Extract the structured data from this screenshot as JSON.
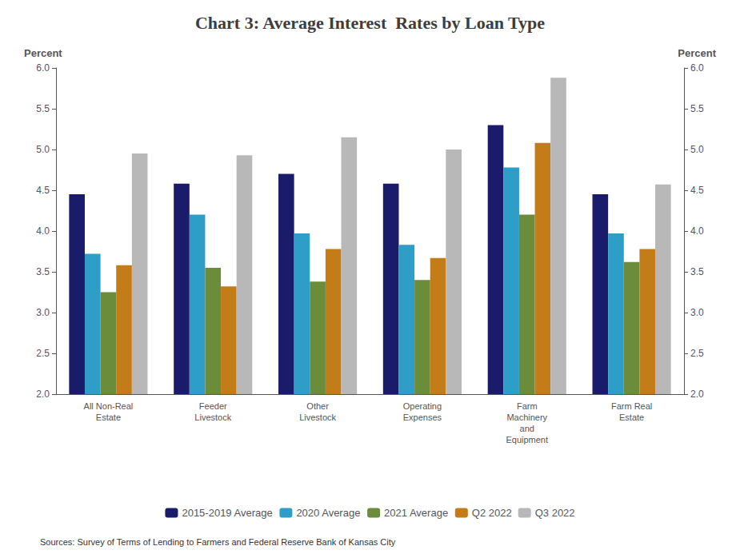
{
  "chart_data": {
    "type": "bar",
    "title": "Chart 3: Average Interest  Rates by Loan Type",
    "categories": [
      "All Non-Real\nEstate",
      "Feeder\nLivestock",
      "Other\nLivestock",
      "Operating\nExpenses",
      "Farm\nMachinery\nand\nEquipment",
      "Farm Real\nEstate"
    ],
    "series": [
      {
        "name": "2015-2019 Average",
        "color": "#1b1b6b",
        "values": [
          4.45,
          4.58,
          4.7,
          4.58,
          5.3,
          4.45
        ]
      },
      {
        "name": "2020 Average",
        "color": "#2e9ec9",
        "values": [
          3.72,
          4.2,
          3.97,
          3.83,
          4.78,
          3.97
        ]
      },
      {
        "name": "2021 Average",
        "color": "#6b8c3a",
        "values": [
          3.25,
          3.55,
          3.38,
          3.4,
          4.2,
          3.62
        ]
      },
      {
        "name": "Q2 2022",
        "color": "#c47c18",
        "values": [
          3.58,
          3.32,
          3.78,
          3.67,
          5.08,
          3.78
        ]
      },
      {
        "name": "Q3 2022",
        "color": "#b8b8b8",
        "values": [
          4.95,
          4.93,
          5.15,
          5.0,
          5.88,
          4.57
        ]
      }
    ],
    "ylabel": "Percent",
    "ylim": [
      2.0,
      6.0
    ],
    "yticks": [
      {
        "value": 2.0,
        "label": "2.0"
      },
      2.5,
      {
        "value": 3.0,
        "label": "3.0"
      },
      3.5,
      {
        "value": 4.0,
        "label": "4.0"
      },
      4.5,
      {
        "value": 5.0,
        "label": "5.0"
      },
      5.5,
      {
        "value": 6.0,
        "label": "6.0"
      }
    ],
    "y2label": "Percent",
    "y2lim": [
      2.0,
      6.0
    ],
    "y2ticks": [
      {
        "value": 2.0,
        "label": "2.0"
      },
      2.5,
      {
        "value": 3.0,
        "label": "3.0"
      },
      3.5,
      {
        "value": 4.0,
        "label": "4.0"
      },
      4.5,
      {
        "value": 5.0,
        "label": "5.0"
      },
      5.5,
      {
        "value": 6.0,
        "label": "6.0"
      }
    ],
    "annotations": [
      "Sources: Survey of Terms of Lending to Farmers and Federal Reserve Bank of Kansas City"
    ],
    "legend": "bottom",
    "grid": false
  }
}
